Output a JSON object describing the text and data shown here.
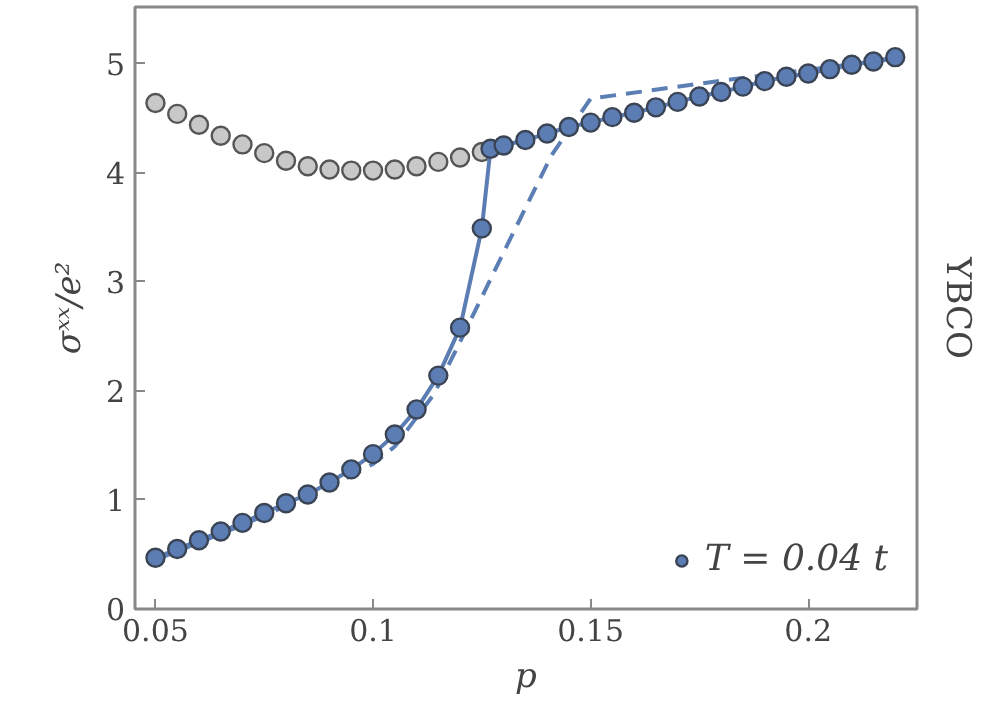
{
  "chart_data": {
    "type": "line",
    "xlabel": "p",
    "ylabel": "σˣˣ/e²",
    "annotations": [
      "YBCO"
    ],
    "xlim": [
      0.0453,
      0.225
    ],
    "ylim": [
      0,
      5.52
    ],
    "xticks": [
      0.05,
      0.1,
      0.15,
      0.2
    ],
    "yticks": [
      0,
      1,
      2,
      3,
      4,
      5
    ],
    "grid": false,
    "legend": "bottom right",
    "series": [
      {
        "type": "scatter",
        "color": "#c8c8c8",
        "marker": "circle",
        "x": [
          0.05,
          0.055,
          0.06,
          0.065,
          0.07,
          0.075,
          0.08,
          0.085,
          0.09,
          0.095,
          0.1,
          0.105,
          0.11,
          0.115,
          0.12,
          0.125
        ],
        "values": [
          4.64,
          4.54,
          4.44,
          4.34,
          4.26,
          4.18,
          4.11,
          4.06,
          4.03,
          4.02,
          4.02,
          4.03,
          4.06,
          4.1,
          4.14,
          4.19
        ]
      },
      {
        "color": "#5b7fb5",
        "line_style": "dashed",
        "marker": "none",
        "x": [
          0.05,
          0.07,
          0.09,
          0.1,
          0.105,
          0.114,
          0.12,
          0.13,
          0.141,
          0.15,
          0.183,
          0.221
        ],
        "values": [
          0.45,
          0.77,
          1.12,
          1.33,
          1.49,
          1.97,
          2.45,
          3.27,
          4.16,
          4.68,
          4.86,
          5.05
        ]
      },
      {
        "name": "T = 0.04 t",
        "color": "#5b7db4",
        "line_style": "solid",
        "marker": "circle",
        "x": [
          0.05,
          0.055,
          0.06,
          0.065,
          0.07,
          0.075,
          0.08,
          0.085,
          0.09,
          0.095,
          0.1,
          0.105,
          0.11,
          0.115,
          0.12,
          0.125,
          0.127,
          0.13,
          0.135,
          0.14,
          0.145,
          0.15,
          0.155,
          0.16,
          0.165,
          0.17,
          0.175,
          0.18,
          0.185,
          0.19,
          0.195,
          0.2,
          0.205,
          0.21,
          0.215,
          0.22
        ],
        "values": [
          0.47,
          0.55,
          0.63,
          0.71,
          0.79,
          0.88,
          0.97,
          1.05,
          1.16,
          1.28,
          1.42,
          1.6,
          1.83,
          2.14,
          2.58,
          3.49,
          4.22,
          4.25,
          4.3,
          4.36,
          4.42,
          4.46,
          4.51,
          4.55,
          4.6,
          4.65,
          4.7,
          4.74,
          4.79,
          4.84,
          4.88,
          4.91,
          4.95,
          4.99,
          5.02,
          5.06
        ]
      }
    ]
  }
}
